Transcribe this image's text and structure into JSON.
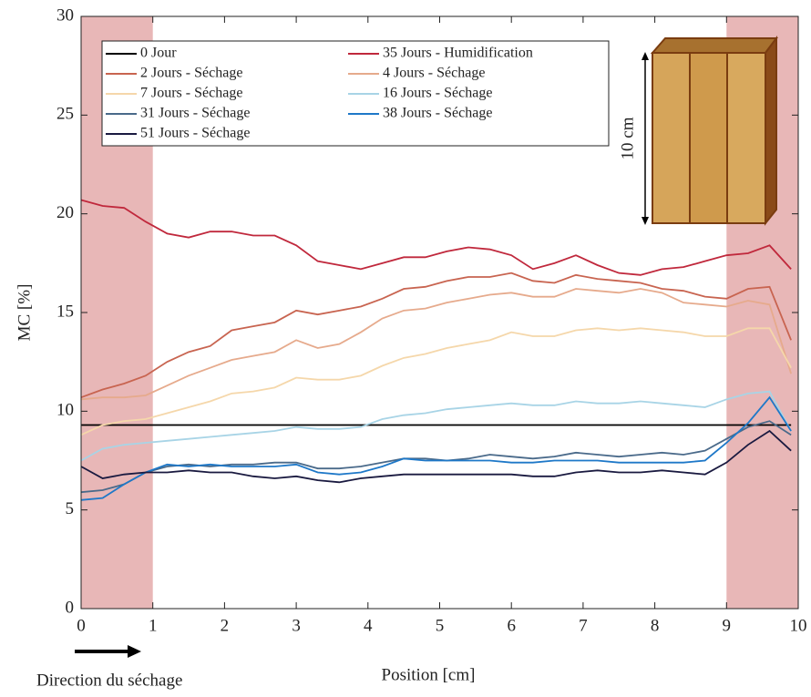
{
  "chart_data": {
    "type": "line",
    "xlabel": "Position [cm]",
    "ylabel": "MC [%]",
    "annotations": [
      "Direction du séchage",
      "10 cm"
    ],
    "xlim": [
      0,
      10
    ],
    "ylim": [
      0,
      30
    ],
    "xticks": [
      0,
      1,
      2,
      3,
      4,
      5,
      6,
      7,
      8,
      9,
      10
    ],
    "yticks": [
      0,
      5,
      10,
      15,
      20,
      25,
      30
    ],
    "legend": "upper left",
    "shaded_regions": [
      [
        0,
        1
      ],
      [
        9,
        10
      ]
    ],
    "shade_color": "#e8b7b7",
    "x": [
      0,
      0.3,
      0.6,
      0.9,
      1.2,
      1.5,
      1.8,
      2.1,
      2.4,
      2.7,
      3.0,
      3.3,
      3.6,
      3.9,
      4.2,
      4.5,
      4.8,
      5.1,
      5.4,
      5.7,
      6.0,
      6.3,
      6.6,
      6.9,
      7.2,
      7.5,
      7.8,
      8.1,
      8.4,
      8.7,
      9.0,
      9.3,
      9.6,
      9.9
    ],
    "series": [
      {
        "name": "0 Jour",
        "color": "#000000",
        "values": [
          9.3,
          9.3,
          9.3,
          9.3,
          9.3,
          9.3,
          9.3,
          9.3,
          9.3,
          9.3,
          9.3,
          9.3,
          9.3,
          9.3,
          9.3,
          9.3,
          9.3,
          9.3,
          9.3,
          9.3,
          9.3,
          9.3,
          9.3,
          9.3,
          9.3,
          9.3,
          9.3,
          9.3,
          9.3,
          9.3,
          9.3,
          9.3,
          9.3,
          9.3
        ]
      },
      {
        "name": "35 Jours - Humidification",
        "color": "#c0283c",
        "values": [
          20.7,
          20.4,
          20.3,
          19.6,
          19.0,
          18.8,
          19.1,
          19.1,
          18.9,
          18.9,
          18.4,
          17.6,
          17.4,
          17.2,
          17.5,
          17.8,
          17.8,
          18.1,
          18.3,
          18.2,
          17.9,
          17.2,
          17.5,
          17.9,
          17.4,
          17.0,
          16.9,
          17.2,
          17.3,
          17.6,
          17.9,
          18.0,
          18.4,
          17.2
        ]
      },
      {
        "name": "2 Jours - Séchage",
        "color": "#c86450",
        "values": [
          10.7,
          11.1,
          11.4,
          11.8,
          12.5,
          13.0,
          13.3,
          14.1,
          14.3,
          14.5,
          15.1,
          14.9,
          15.1,
          15.3,
          15.7,
          16.2,
          16.3,
          16.6,
          16.8,
          16.8,
          17.0,
          16.6,
          16.5,
          16.9,
          16.7,
          16.6,
          16.5,
          16.2,
          16.1,
          15.8,
          15.7,
          16.2,
          16.3,
          13.6
        ]
      },
      {
        "name": "4 Jours - Séchage",
        "color": "#e6aa8c",
        "values": [
          10.6,
          10.7,
          10.7,
          10.8,
          11.3,
          11.8,
          12.2,
          12.6,
          12.8,
          13.0,
          13.6,
          13.2,
          13.4,
          14.0,
          14.7,
          15.1,
          15.2,
          15.5,
          15.7,
          15.9,
          16.0,
          15.8,
          15.8,
          16.2,
          16.1,
          16.0,
          16.2,
          16.0,
          15.5,
          15.4,
          15.3,
          15.6,
          15.4,
          11.9
        ]
      },
      {
        "name": "7 Jours - Séchage",
        "color": "#f5d7aa",
        "values": [
          8.8,
          9.3,
          9.5,
          9.6,
          9.9,
          10.2,
          10.5,
          10.9,
          11.0,
          11.2,
          11.7,
          11.6,
          11.6,
          11.8,
          12.3,
          12.7,
          12.9,
          13.2,
          13.4,
          13.6,
          14.0,
          13.8,
          13.8,
          14.1,
          14.2,
          14.1,
          14.2,
          14.1,
          14.0,
          13.8,
          13.8,
          14.2,
          14.2,
          12.2
        ]
      },
      {
        "name": "16 Jours - Séchage",
        "color": "#a8d4e6",
        "values": [
          7.5,
          8.1,
          8.3,
          8.4,
          8.5,
          8.6,
          8.7,
          8.8,
          8.9,
          9.0,
          9.2,
          9.1,
          9.1,
          9.2,
          9.6,
          9.8,
          9.9,
          10.1,
          10.2,
          10.3,
          10.4,
          10.3,
          10.3,
          10.5,
          10.4,
          10.4,
          10.5,
          10.4,
          10.3,
          10.2,
          10.6,
          10.9,
          11.0,
          9.0
        ]
      },
      {
        "name": "31 Jours - Séchage",
        "color": "#4a6a8a",
        "values": [
          5.9,
          6.0,
          6.3,
          6.9,
          7.2,
          7.3,
          7.2,
          7.3,
          7.3,
          7.4,
          7.4,
          7.1,
          7.1,
          7.2,
          7.4,
          7.6,
          7.6,
          7.5,
          7.6,
          7.8,
          7.7,
          7.6,
          7.7,
          7.9,
          7.8,
          7.7,
          7.8,
          7.9,
          7.8,
          8.0,
          8.6,
          9.2,
          9.5,
          8.8
        ]
      },
      {
        "name": "38 Jours - Séchage",
        "color": "#1e78c8",
        "values": [
          5.5,
          5.6,
          6.3,
          6.9,
          7.3,
          7.2,
          7.3,
          7.2,
          7.2,
          7.2,
          7.3,
          6.9,
          6.8,
          6.9,
          7.2,
          7.6,
          7.5,
          7.5,
          7.5,
          7.5,
          7.4,
          7.4,
          7.5,
          7.5,
          7.5,
          7.4,
          7.4,
          7.4,
          7.4,
          7.5,
          8.4,
          9.4,
          10.7,
          9.0
        ]
      },
      {
        "name": "51 Jours - Séchage",
        "color": "#1a1a40",
        "values": [
          7.2,
          6.6,
          6.8,
          6.9,
          6.9,
          7.0,
          6.9,
          6.9,
          6.7,
          6.6,
          6.7,
          6.5,
          6.4,
          6.6,
          6.7,
          6.8,
          6.8,
          6.8,
          6.8,
          6.8,
          6.8,
          6.7,
          6.7,
          6.9,
          7.0,
          6.9,
          6.9,
          7.0,
          6.9,
          6.8,
          7.4,
          8.3,
          9.0,
          8.0
        ]
      }
    ]
  }
}
